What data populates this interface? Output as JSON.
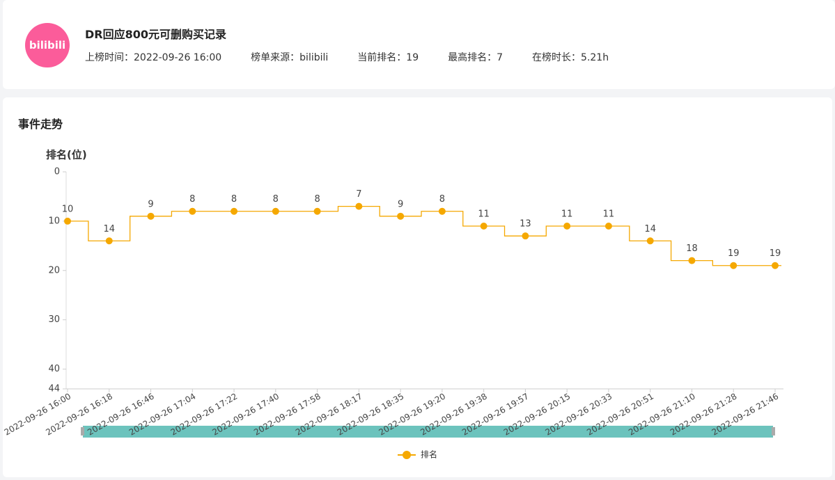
{
  "header": {
    "logo": "bilibili",
    "title": "DR回应800元可删购买记录",
    "meta": [
      "上榜时间：2022-09-26 16:00",
      "榜单来源：bilibili",
      "当前排名：19",
      "最高排名：7",
      "在榜时长：5.21h"
    ]
  },
  "section_title": "事件走势",
  "chart_data": {
    "type": "line",
    "y_label": "排名(位)",
    "y_inverted": true,
    "step": "middle",
    "categories": [
      "2022-09-26 16:00",
      "2022-09-26 16:18",
      "2022-09-26 16:46",
      "2022-09-26 17:04",
      "2022-09-26 17:22",
      "2022-09-26 17:40",
      "2022-09-26 17:58",
      "2022-09-26 18:17",
      "2022-09-26 18:35",
      "2022-09-26 19:20",
      "2022-09-26 19:38",
      "2022-09-26 19:57",
      "2022-09-26 20:15",
      "2022-09-26 20:33",
      "2022-09-26 20:51",
      "2022-09-26 21:10",
      "2022-09-26 21:28",
      "2022-09-26 21:46"
    ],
    "series": [
      {
        "name": "排名",
        "color": "#f5a800",
        "values": [
          10,
          14,
          9,
          8,
          8,
          8,
          8,
          7,
          9,
          8,
          11,
          13,
          11,
          11,
          14,
          18,
          19,
          19
        ]
      }
    ],
    "ylim": [
      0,
      44
    ],
    "yticks": [
      0,
      10,
      20,
      30,
      40,
      44
    ],
    "legend": "bottom"
  }
}
